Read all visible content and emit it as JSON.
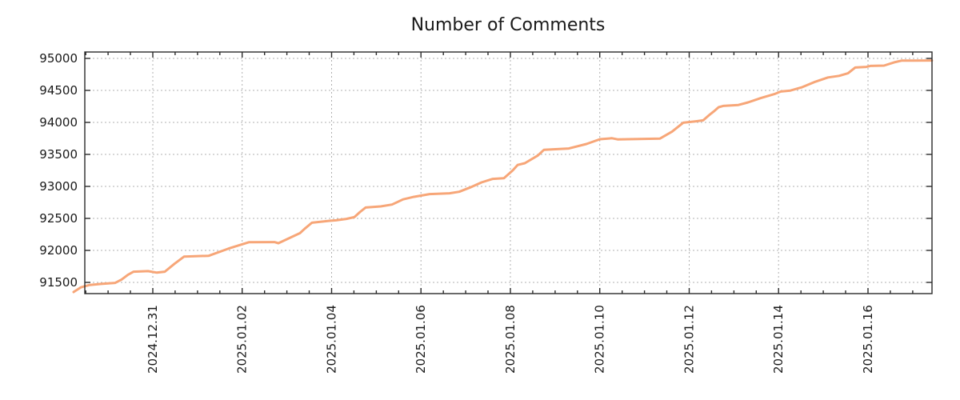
{
  "chart_data": {
    "type": "line",
    "title": "Number of Comments",
    "grid": "dashed",
    "legend": "none",
    "style": {
      "line_color": "#f7a678",
      "grid_color": "#b0b0b0",
      "axis_color": "#2a2a2a",
      "text_color": "#1a1a1a",
      "background": "#ffffff",
      "line_width": 3
    },
    "x_axis": {
      "unit": "days",
      "epoch": "2024-12-31",
      "range_days": [
        -1.521,
        17.432
      ],
      "minor_tick_interval_days": 0.5,
      "major_ticks": [
        {
          "d": 0,
          "label": "2024.12.31"
        },
        {
          "d": 2,
          "label": "2025.01.02"
        },
        {
          "d": 4,
          "label": "2025.01.04"
        },
        {
          "d": 6,
          "label": "2025.01.06"
        },
        {
          "d": 8,
          "label": "2025.01.08"
        },
        {
          "d": 10,
          "label": "2025.01.10"
        },
        {
          "d": 12,
          "label": "2025.01.12"
        },
        {
          "d": 14,
          "label": "2025.01.14"
        },
        {
          "d": 16,
          "label": "2025.01.16"
        }
      ]
    },
    "y_axis": {
      "range": [
        91325,
        95100
      ],
      "ticks": [
        91500,
        92000,
        92500,
        93000,
        93500,
        94000,
        94500,
        95000
      ]
    },
    "series": [
      {
        "name": "Number of Comments",
        "points": [
          [
            -1.772,
            91350
          ],
          [
            -1.611,
            91422
          ],
          [
            -1.414,
            91460
          ],
          [
            -1.092,
            91480
          ],
          [
            -0.841,
            91492
          ],
          [
            -0.698,
            91545
          ],
          [
            -0.555,
            91620
          ],
          [
            -0.43,
            91668
          ],
          [
            -0.107,
            91676
          ],
          [
            0.09,
            91652
          ],
          [
            0.268,
            91668
          ],
          [
            0.483,
            91790
          ],
          [
            0.698,
            91902
          ],
          [
            1.253,
            91916
          ],
          [
            1.7,
            92030
          ],
          [
            2.148,
            92128
          ],
          [
            2.72,
            92130
          ],
          [
            2.81,
            92112
          ],
          [
            3.293,
            92270
          ],
          [
            3.4,
            92340
          ],
          [
            3.56,
            92432
          ],
          [
            3.955,
            92462
          ],
          [
            4.098,
            92470
          ],
          [
            4.331,
            92492
          ],
          [
            4.51,
            92520
          ],
          [
            4.635,
            92600
          ],
          [
            4.76,
            92670
          ],
          [
            5.1,
            92688
          ],
          [
            5.351,
            92716
          ],
          [
            5.601,
            92798
          ],
          [
            5.834,
            92836
          ],
          [
            6.192,
            92880
          ],
          [
            6.639,
            92892
          ],
          [
            6.854,
            92916
          ],
          [
            7.105,
            92985
          ],
          [
            7.355,
            93062
          ],
          [
            7.606,
            93118
          ],
          [
            7.856,
            93128
          ],
          [
            8.053,
            93250
          ],
          [
            8.161,
            93335
          ],
          [
            8.322,
            93362
          ],
          [
            8.608,
            93480
          ],
          [
            8.752,
            93572
          ],
          [
            9.306,
            93592
          ],
          [
            9.7,
            93662
          ],
          [
            10.004,
            93738
          ],
          [
            10.273,
            93752
          ],
          [
            10.398,
            93735
          ],
          [
            11.347,
            93748
          ],
          [
            11.615,
            93855
          ],
          [
            11.866,
            93995
          ],
          [
            12.152,
            94018
          ],
          [
            12.313,
            94032
          ],
          [
            12.456,
            94120
          ],
          [
            12.569,
            94183
          ],
          [
            12.659,
            94237
          ],
          [
            12.761,
            94258
          ],
          [
            13.101,
            94272
          ],
          [
            13.316,
            94312
          ],
          [
            13.602,
            94380
          ],
          [
            13.906,
            94442
          ],
          [
            14.049,
            94482
          ],
          [
            14.264,
            94497
          ],
          [
            14.514,
            94548
          ],
          [
            14.801,
            94630
          ],
          [
            15.105,
            94702
          ],
          [
            15.355,
            94727
          ],
          [
            15.552,
            94768
          ],
          [
            15.713,
            94858
          ],
          [
            15.964,
            94868
          ],
          [
            16.053,
            94882
          ],
          [
            16.358,
            94888
          ],
          [
            16.608,
            94942
          ],
          [
            16.751,
            94965
          ],
          [
            17.431,
            94968
          ]
        ]
      }
    ]
  }
}
